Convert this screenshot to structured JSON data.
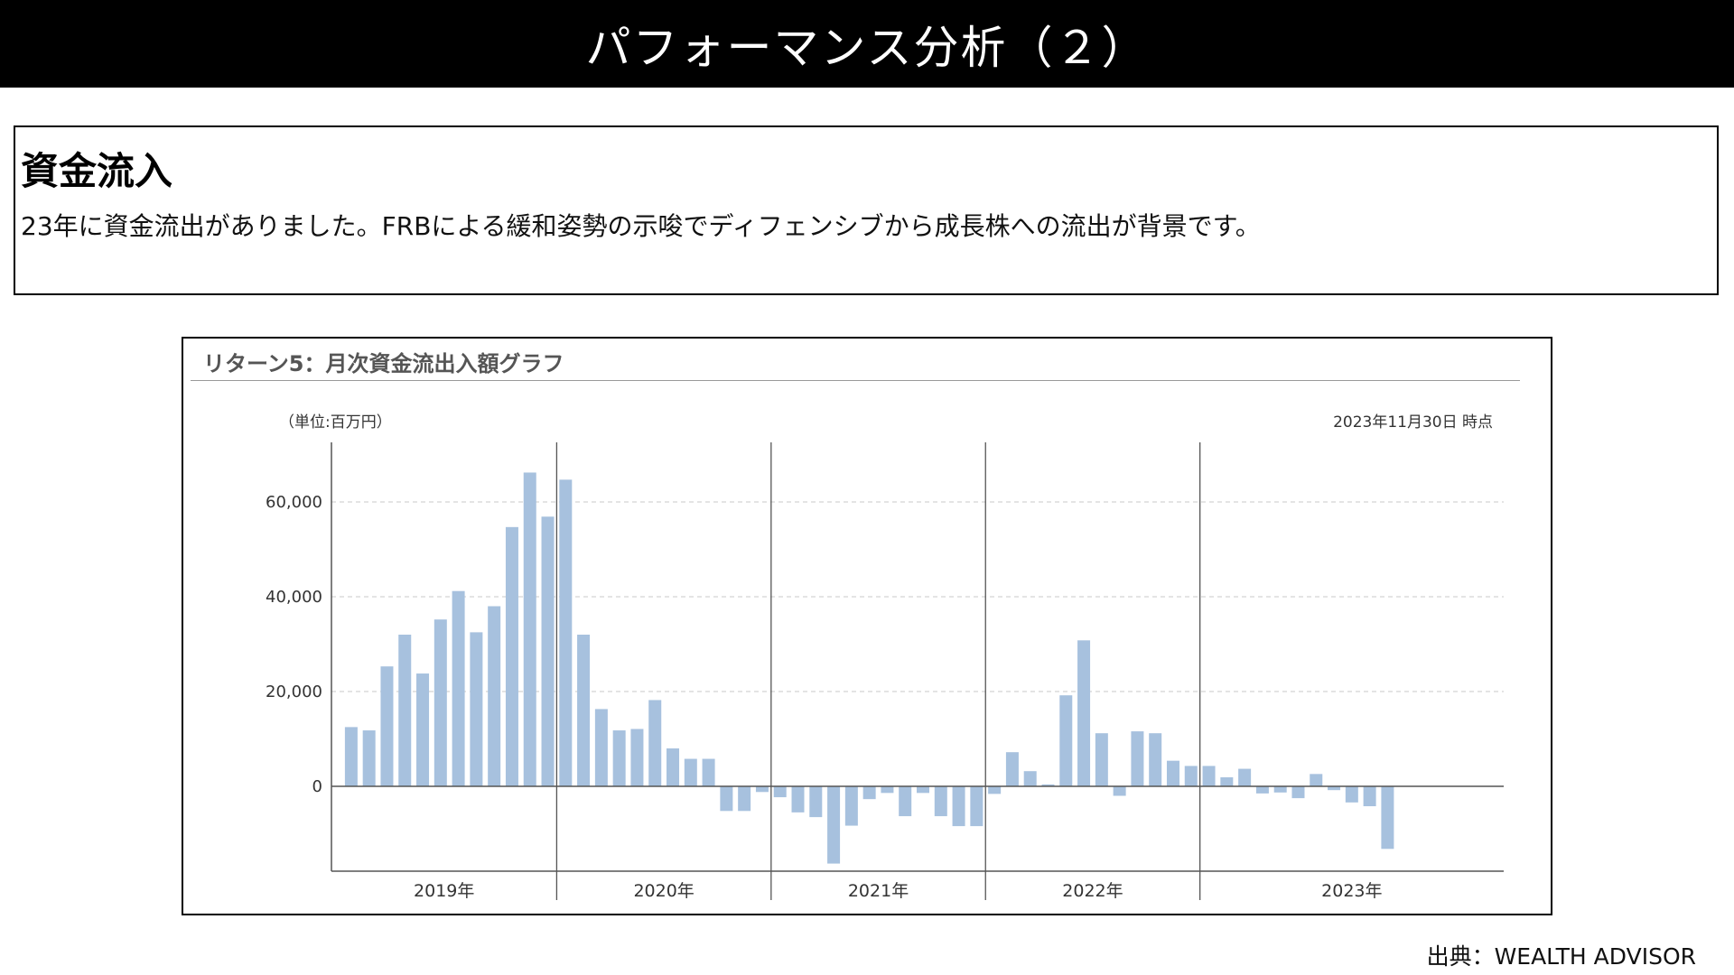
{
  "header": {
    "title": "パフォーマンス分析（２）"
  },
  "summary": {
    "heading": "資金流入",
    "text": "23年に資金流出がありました。FRBによる緩和姿勢の示唆でディフェンシブから成長株への流出が背景です。"
  },
  "chart_data": {
    "type": "bar",
    "title": "リターン5：月次資金流出入額グラフ",
    "unit_label": "（単位:百万円）",
    "as_of": "2023年11月30日 時点",
    "xlabel": "",
    "ylabel": "",
    "ylim": [
      -18000,
      72000
    ],
    "yticks": [
      0,
      20000,
      40000,
      60000
    ],
    "ytick_labels": [
      "0",
      "20,000",
      "40,000",
      "60,000"
    ],
    "grid": true,
    "bar_color": "#a7c1de",
    "year_labels": [
      "2019年",
      "2020年",
      "2021年",
      "2022年",
      "2023年"
    ],
    "categories": [
      "2019-01",
      "2019-02",
      "2019-03",
      "2019-04",
      "2019-05",
      "2019-06",
      "2019-07",
      "2019-08",
      "2019-09",
      "2019-10",
      "2019-11",
      "2019-12",
      "2020-01",
      "2020-02",
      "2020-03",
      "2020-04",
      "2020-05",
      "2020-06",
      "2020-07",
      "2020-08",
      "2020-09",
      "2020-10",
      "2020-11",
      "2020-12",
      "2021-01",
      "2021-02",
      "2021-03",
      "2021-04",
      "2021-05",
      "2021-06",
      "2021-07",
      "2021-08",
      "2021-09",
      "2021-10",
      "2021-11",
      "2021-12",
      "2022-01",
      "2022-02",
      "2022-03",
      "2022-04",
      "2022-05",
      "2022-06",
      "2022-07",
      "2022-08",
      "2022-09",
      "2022-10",
      "2022-11",
      "2022-12",
      "2023-01",
      "2023-02",
      "2023-03",
      "2023-04",
      "2023-05",
      "2023-06",
      "2023-07",
      "2023-08",
      "2023-09",
      "2023-10",
      "2023-11"
    ],
    "values": [
      12500,
      11800,
      25300,
      32000,
      23800,
      35200,
      41200,
      32500,
      38000,
      54700,
      66200,
      56900,
      64700,
      32000,
      16300,
      11800,
      12100,
      18200,
      8000,
      5800,
      5800,
      -5200,
      -5200,
      -1200,
      -2300,
      -5500,
      -6500,
      -16300,
      -8300,
      -2700,
      -1400,
      -6300,
      -1400,
      -6300,
      -8400,
      -8400,
      -1600,
      7200,
      3200,
      400,
      19200,
      30800,
      11200,
      -2000,
      11600,
      11200,
      5400,
      4300,
      4300,
      1900,
      3700,
      -1500,
      -1300,
      -2500,
      2600,
      -800,
      -3400,
      -4200,
      -13200
    ]
  },
  "source": {
    "label": "出典：WEALTH ADVISOR"
  }
}
